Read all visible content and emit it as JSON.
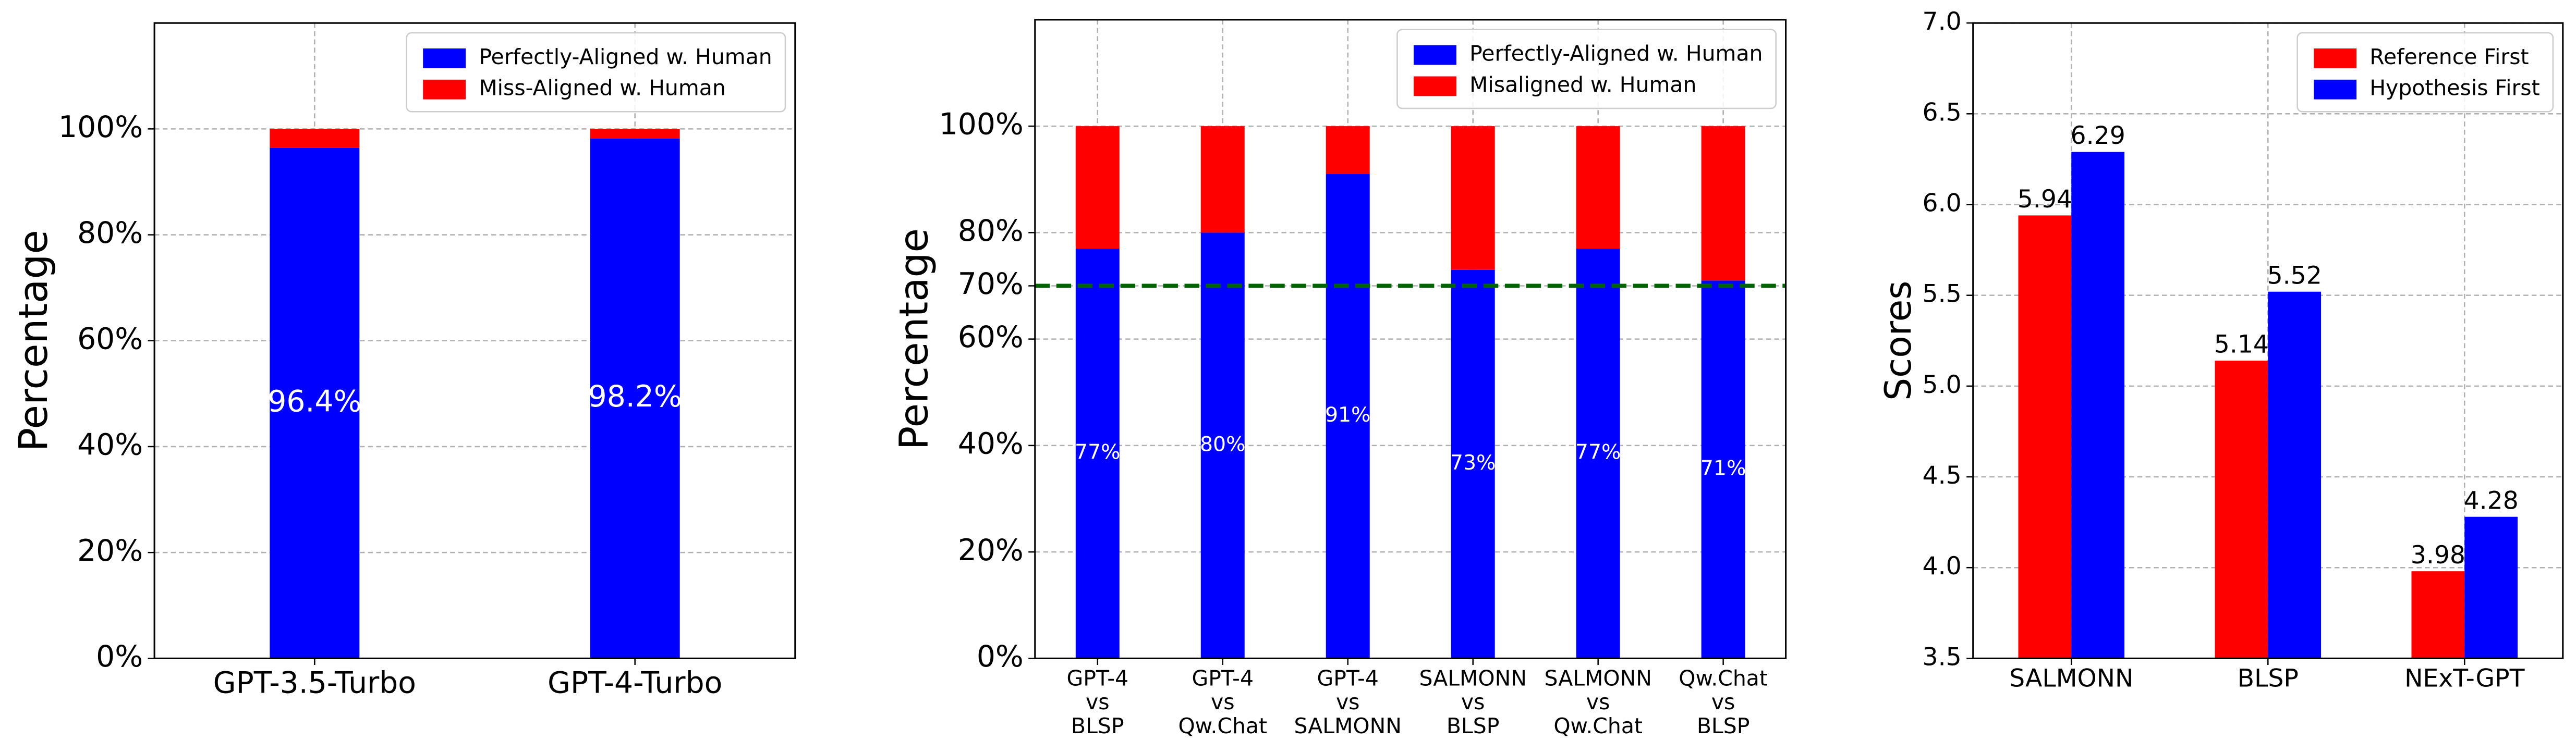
{
  "chart_data": [
    {
      "type": "bar",
      "stacked": true,
      "ylabel": "Percentage",
      "categories": [
        "GPT-3.5-Turbo",
        "GPT-4-Turbo"
      ],
      "series": [
        {
          "name": "Perfectly-Aligned w. Human",
          "color": "#0000ff",
          "values": [
            96.4,
            98.2
          ],
          "value_labels": [
            "96.4%",
            "98.2%"
          ]
        },
        {
          "name": "Miss-Aligned w. Human",
          "color": "#ff0000",
          "values": [
            3.6,
            1.8
          ]
        }
      ],
      "ylim": [
        0,
        120
      ],
      "yticks": [
        {
          "value": 0,
          "label": "0%"
        },
        {
          "value": 20,
          "label": "20%"
        },
        {
          "value": 40,
          "label": "40%"
        },
        {
          "value": 60,
          "label": "60%"
        },
        {
          "value": 80,
          "label": "80%"
        },
        {
          "value": 100,
          "label": "100%"
        }
      ],
      "grid": true,
      "legend": "upper right"
    },
    {
      "type": "bar",
      "stacked": true,
      "ylabel": "Percentage",
      "categories": [
        "GPT-4\nvs\nBLSP",
        "GPT-4\nvs\nQw.Chat",
        "GPT-4\nvs\nSALMONN",
        "SALMONN\nvs\nBLSP",
        "SALMONN\nvs\nQw.Chat",
        "Qw.Chat\nvs\nBLSP"
      ],
      "series": [
        {
          "name": "Perfectly-Aligned w. Human",
          "color": "#0000ff",
          "values": [
            77,
            80,
            91,
            73,
            77,
            71
          ],
          "value_labels": [
            "77%",
            "80%",
            "91%",
            "73%",
            "77%",
            "71%"
          ]
        },
        {
          "name": "Misaligned w. Human",
          "color": "#ff0000",
          "values": [
            23,
            20,
            9,
            27,
            23,
            29
          ]
        }
      ],
      "ylim": [
        0,
        120
      ],
      "yticks": [
        {
          "value": 0,
          "label": "0%"
        },
        {
          "value": 20,
          "label": "20%"
        },
        {
          "value": 40,
          "label": "40%"
        },
        {
          "value": 60,
          "label": "60%"
        },
        {
          "value": 70,
          "label": "70%"
        },
        {
          "value": 80,
          "label": "80%"
        },
        {
          "value": 100,
          "label": "100%"
        }
      ],
      "hline": {
        "value": 70,
        "color": "#006400"
      },
      "grid": true,
      "legend": "upper right"
    },
    {
      "type": "bar",
      "stacked": false,
      "ylabel": "Scores",
      "categories": [
        "SALMONN",
        "BLSP",
        "NExT-GPT"
      ],
      "series": [
        {
          "name": "Reference First",
          "color": "#ff0000",
          "values": [
            5.94,
            5.14,
            3.98
          ]
        },
        {
          "name": "Hypothesis First",
          "color": "#0000ff",
          "values": [
            6.29,
            5.52,
            4.28
          ]
        }
      ],
      "ylim": [
        3.5,
        7.0
      ],
      "yticks": [
        3.5,
        {
          "value": 4.0,
          "label": "4.0"
        },
        4.5,
        {
          "value": 5.0,
          "label": "5.0"
        },
        5.5,
        {
          "value": 6.0,
          "label": "6.0"
        },
        6.5,
        {
          "value": 7.0,
          "label": "7.0"
        }
      ],
      "grid": true,
      "legend": "upper right"
    }
  ]
}
